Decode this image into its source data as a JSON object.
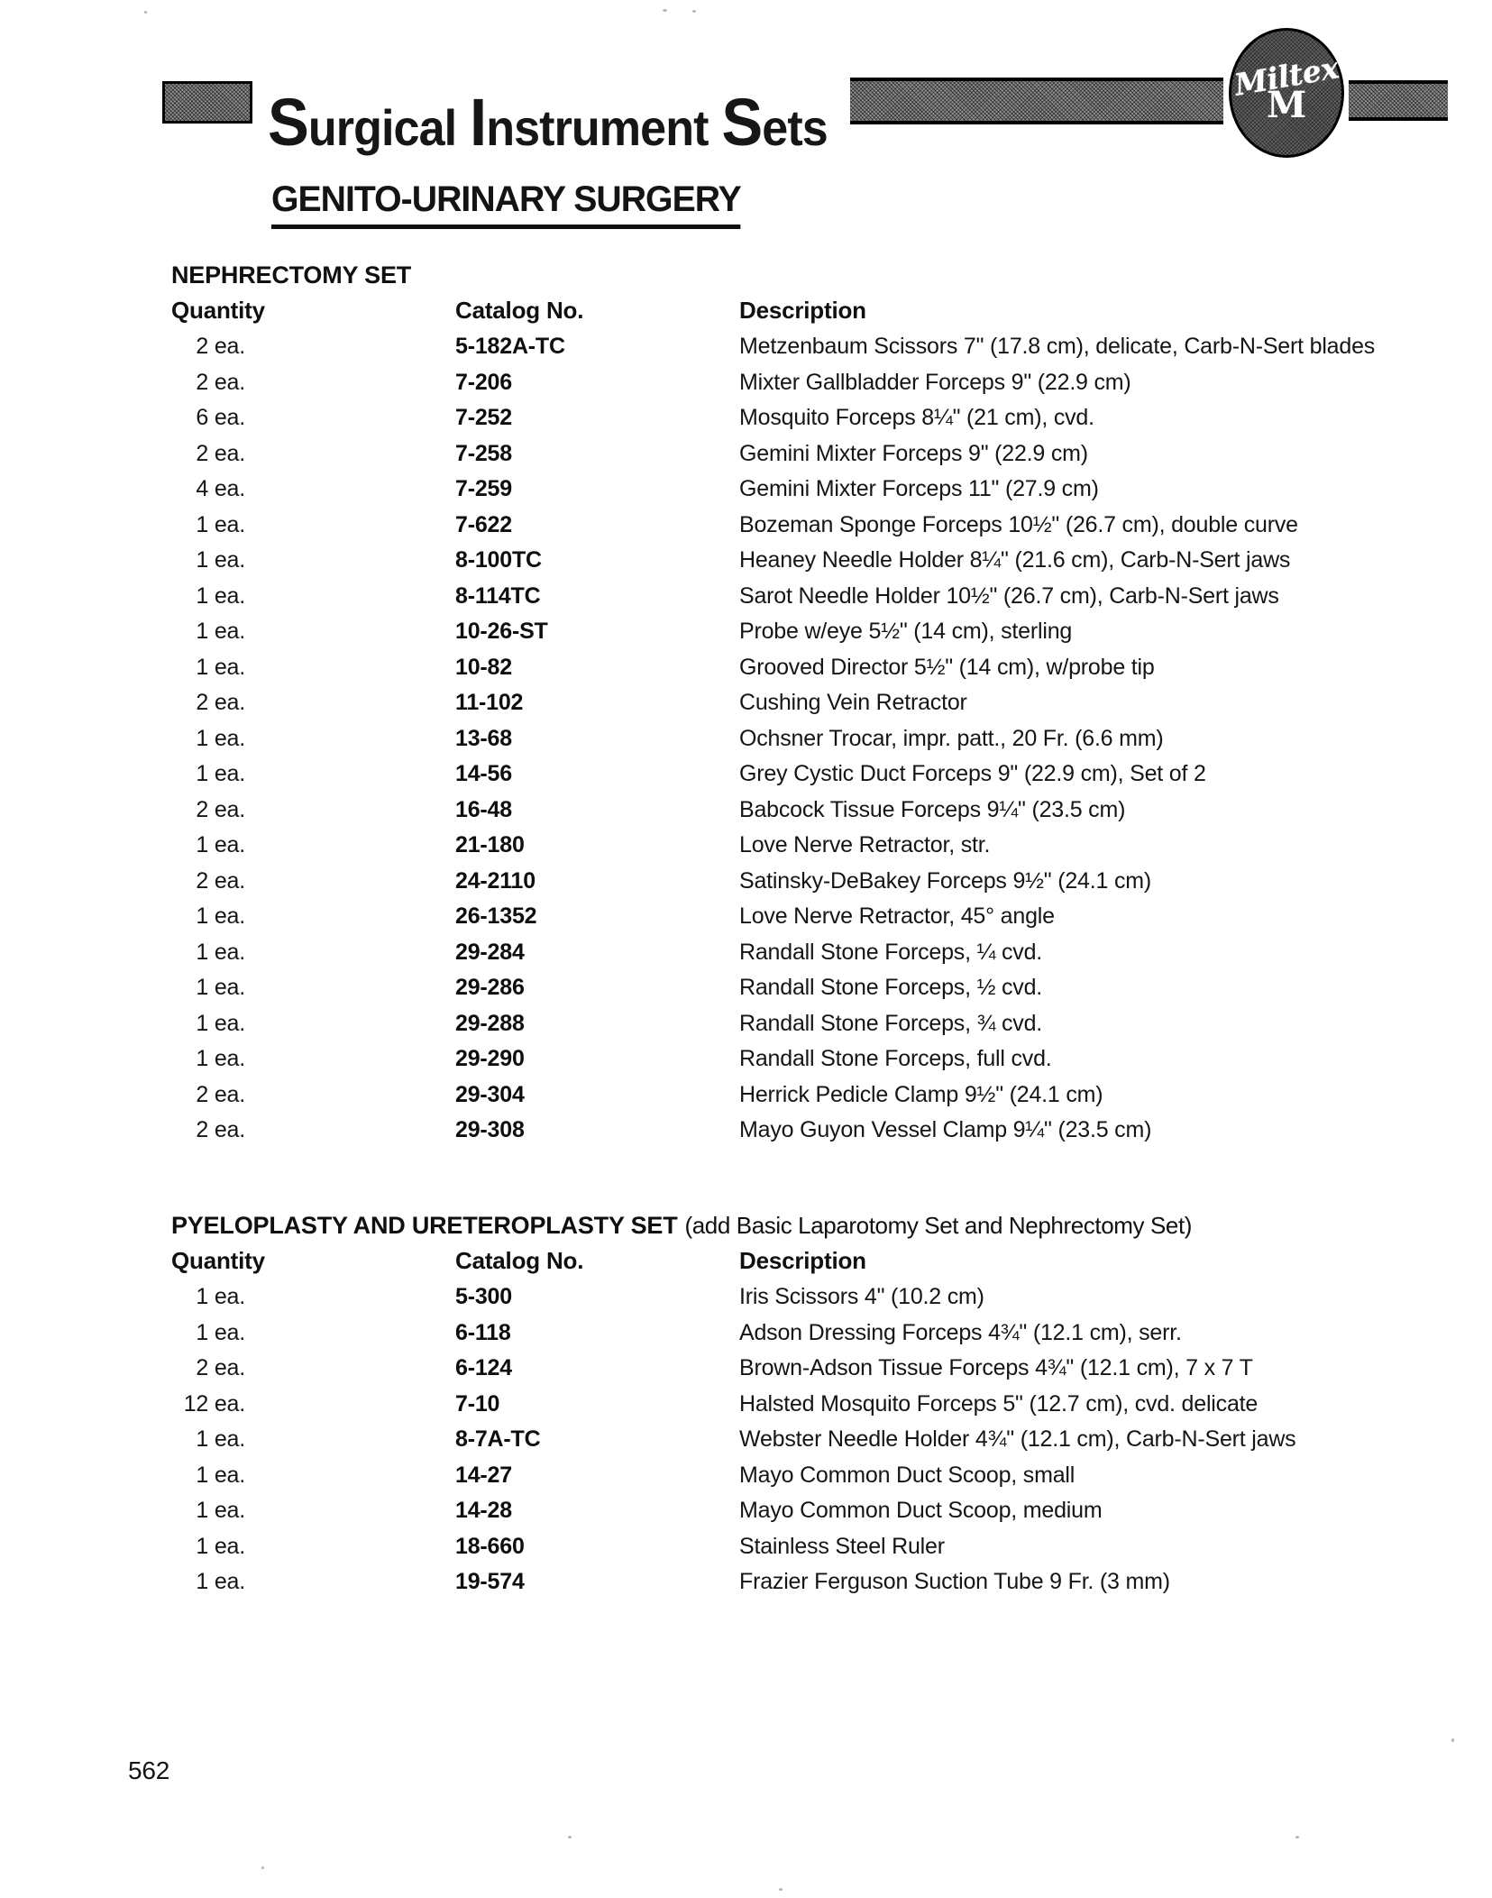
{
  "header": {
    "brand_words": [
      "Surgical",
      "Instrument",
      "Sets"
    ],
    "logo_script": "Miltex",
    "logo_letter": "M",
    "page_title": "GENITO-URINARY SURGERY"
  },
  "sections": [
    {
      "name": "NEPHRECTOMY SET",
      "note": "",
      "columns": [
        "Quantity",
        "Catalog No.",
        "Description"
      ],
      "rows": [
        {
          "qty": "2 ea.",
          "cat": "5-182A-TC",
          "desc": "Metzenbaum Scissors 7\" (17.8 cm), delicate, Carb-N-Sert blades"
        },
        {
          "qty": "2 ea.",
          "cat": "7-206",
          "desc": "Mixter Gallbladder Forceps 9\" (22.9 cm)"
        },
        {
          "qty": "6 ea.",
          "cat": "7-252",
          "desc": "Mosquito Forceps 8¼\" (21 cm), cvd."
        },
        {
          "qty": "2 ea.",
          "cat": "7-258",
          "desc": "Gemini Mixter Forceps 9\" (22.9 cm)"
        },
        {
          "qty": "4 ea.",
          "cat": "7-259",
          "desc": "Gemini Mixter Forceps 11\" (27.9 cm)"
        },
        {
          "qty": "1 ea.",
          "cat": "7-622",
          "desc": "Bozeman Sponge Forceps 10½\" (26.7 cm), double curve"
        },
        {
          "qty": "1 ea.",
          "cat": "8-100TC",
          "desc": "Heaney Needle Holder 8¼\" (21.6 cm), Carb-N-Sert jaws"
        },
        {
          "qty": "1 ea.",
          "cat": "8-114TC",
          "desc": "Sarot Needle Holder 10½\" (26.7 cm), Carb-N-Sert jaws"
        },
        {
          "qty": "1 ea.",
          "cat": "10-26-ST",
          "desc": "Probe w/eye 5½\" (14 cm), sterling"
        },
        {
          "qty": "1 ea.",
          "cat": "10-82",
          "desc": "Grooved Director 5½\" (14 cm), w/probe tip"
        },
        {
          "qty": "2 ea.",
          "cat": "11-102",
          "desc": "Cushing Vein Retractor"
        },
        {
          "qty": "1 ea.",
          "cat": "13-68",
          "desc": "Ochsner Trocar, impr. patt., 20 Fr. (6.6 mm)"
        },
        {
          "qty": "1 ea.",
          "cat": "14-56",
          "desc": "Grey Cystic Duct Forceps 9\" (22.9 cm), Set of 2"
        },
        {
          "qty": "2 ea.",
          "cat": "16-48",
          "desc": "Babcock Tissue Forceps 9¼\" (23.5 cm)"
        },
        {
          "qty": "1 ea.",
          "cat": "21-180",
          "desc": "Love Nerve Retractor, str."
        },
        {
          "qty": "2 ea.",
          "cat": "24-2110",
          "desc": "Satinsky-DeBakey Forceps 9½\" (24.1 cm)"
        },
        {
          "qty": "1 ea.",
          "cat": "26-1352",
          "desc": "Love Nerve Retractor, 45° angle"
        },
        {
          "qty": "1 ea.",
          "cat": "29-284",
          "desc": "Randall Stone Forceps, ¼ cvd."
        },
        {
          "qty": "1 ea.",
          "cat": "29-286",
          "desc": "Randall Stone Forceps, ½ cvd."
        },
        {
          "qty": "1 ea.",
          "cat": "29-288",
          "desc": "Randall Stone Forceps, ¾ cvd."
        },
        {
          "qty": "1 ea.",
          "cat": "29-290",
          "desc": "Randall Stone Forceps, full cvd."
        },
        {
          "qty": "2 ea.",
          "cat": "29-304",
          "desc": "Herrick Pedicle Clamp 9½\" (24.1 cm)"
        },
        {
          "qty": "2 ea.",
          "cat": "29-308",
          "desc": "Mayo Guyon Vessel Clamp 9¼\" (23.5 cm)"
        }
      ]
    },
    {
      "name": "PYELOPLASTY AND URETEROPLASTY SET",
      "note": "(add Basic Laparotomy Set and Nephrectomy Set)",
      "columns": [
        "Quantity",
        "Catalog No.",
        "Description"
      ],
      "rows": [
        {
          "qty": "1 ea.",
          "cat": "5-300",
          "desc": "Iris Scissors 4\" (10.2 cm)"
        },
        {
          "qty": "1 ea.",
          "cat": "6-118",
          "desc": "Adson Dressing Forceps 4¾\" (12.1 cm), serr."
        },
        {
          "qty": "2 ea.",
          "cat": "6-124",
          "desc": "Brown-Adson Tissue Forceps 4¾\" (12.1 cm), 7 x 7 T"
        },
        {
          "qty": "12 ea.",
          "cat": "7-10",
          "desc": "Halsted Mosquito Forceps 5\" (12.7 cm), cvd. delicate"
        },
        {
          "qty": "1 ea.",
          "cat": "8-7A-TC",
          "desc": "Webster Needle Holder 4¾\" (12.1 cm), Carb-N-Sert jaws"
        },
        {
          "qty": "1 ea.",
          "cat": "14-27",
          "desc": "Mayo Common Duct Scoop, small"
        },
        {
          "qty": "1 ea.",
          "cat": "14-28",
          "desc": "Mayo Common Duct Scoop, medium"
        },
        {
          "qty": "1 ea.",
          "cat": "18-660",
          "desc": "Stainless Steel Ruler"
        },
        {
          "qty": "1 ea.",
          "cat": "19-574",
          "desc": "Frazier Ferguson Suction Tube 9 Fr. (3 mm)"
        }
      ]
    }
  ],
  "page_number": "562"
}
